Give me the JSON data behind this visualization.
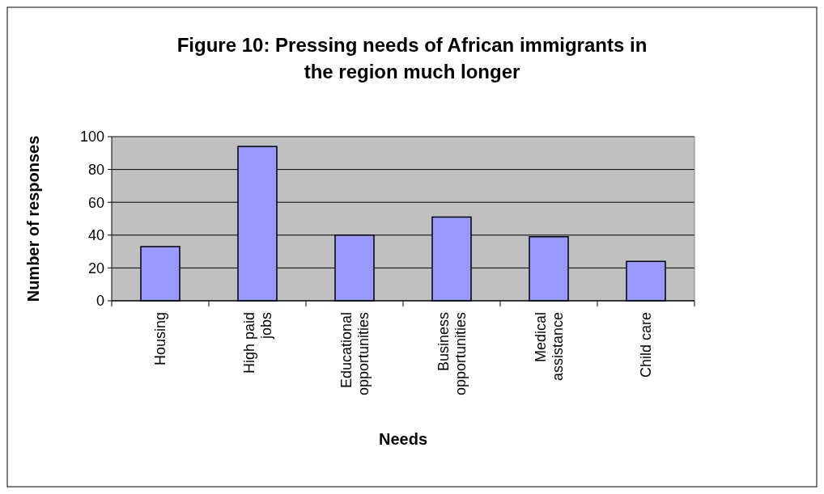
{
  "chart_data": {
    "type": "bar",
    "title": "Figure 10: Pressing needs of African immigrants in the region much longer",
    "xlabel": "Needs",
    "ylabel": "Number of responses",
    "categories": [
      "Housing",
      "High paid jobs",
      "Educational opportunities",
      "Business opportunities",
      "Medical assistance",
      "Child care"
    ],
    "values": [
      33,
      94,
      40,
      51,
      39,
      24
    ],
    "color": "#9999ff",
    "ylim": [
      0,
      100
    ],
    "yticks": [
      0,
      20,
      40,
      60,
      80,
      100
    ],
    "grid": "y"
  }
}
